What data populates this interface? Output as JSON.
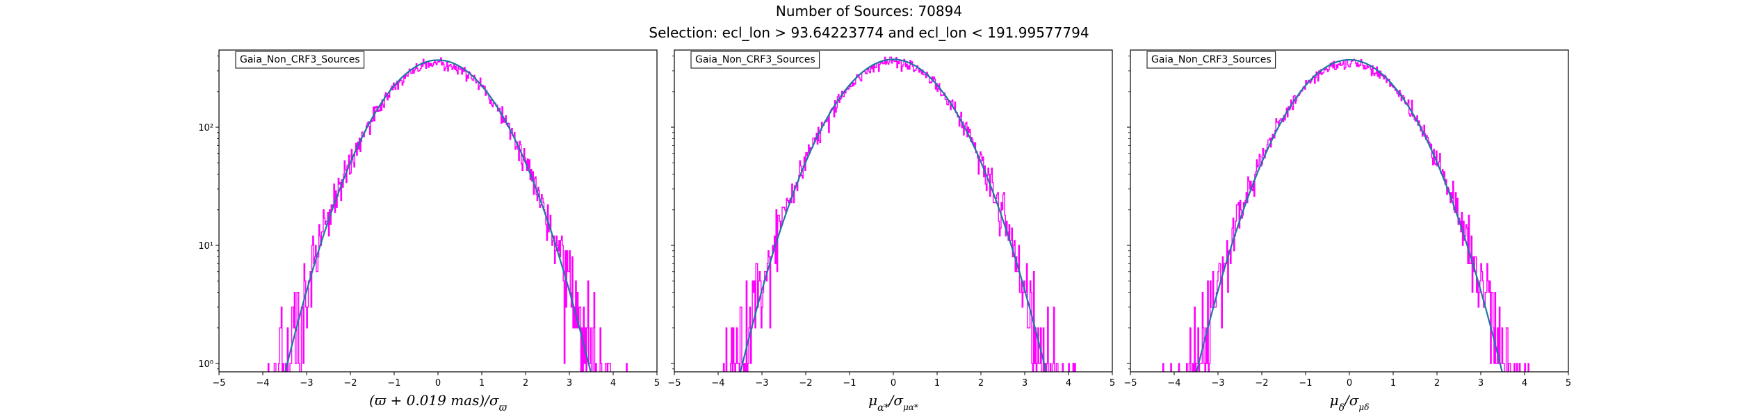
{
  "figure": {
    "title_line1": "Number of Sources: 70894",
    "title_line2": "Selection: ecl_lon > 93.64223774 and ecl_lon < 191.99577794"
  },
  "colors": {
    "histogram": "#ff00ff",
    "fit_curve": "#1a7a9e",
    "axes": "#000000"
  },
  "chart_data": [
    {
      "type": "histogram-with-fit",
      "legend": "Gaia_Non_CRF3_Sources",
      "legend_position": "top-left",
      "xlabel_base": "(ϖ + 0.019 mas)/σ",
      "xlabel_sub": "ϖ",
      "xlim": [
        -5,
        5
      ],
      "xticks": [
        -5,
        -4,
        -3,
        -2,
        -1,
        0,
        1,
        2,
        3,
        4,
        5
      ],
      "yscale": "log",
      "ylim": [
        0.85,
        450
      ],
      "yticks": [
        {
          "value": 1,
          "label": "10⁰"
        },
        {
          "value": 10,
          "label": "10¹"
        },
        {
          "value": 100,
          "label": "10²"
        }
      ],
      "fit": {
        "peak": 370,
        "mean": 0,
        "sigma": 1.0
      },
      "hist": {
        "peak": 350,
        "mean": 0,
        "sigma": 1.02,
        "bin_width": 0.02,
        "range": [
          -5,
          5
        ],
        "seed": 17
      }
    },
    {
      "type": "histogram-with-fit",
      "legend": "Gaia_Non_CRF3_Sources",
      "legend_position": "top-left",
      "xlabel_base": "μ",
      "xlabel_sub": "α*",
      "xlabel_mid": "/σ",
      "xlabel_sub2": "μα*",
      "xlim": [
        -5,
        5
      ],
      "xticks": [
        -5,
        -4,
        -3,
        -2,
        -1,
        0,
        1,
        2,
        3,
        4,
        5
      ],
      "yscale": "log",
      "ylim": [
        0.85,
        450
      ],
      "yticks": [
        {
          "value": 1,
          "label": ""
        },
        {
          "value": 10,
          "label": ""
        },
        {
          "value": 100,
          "label": ""
        }
      ],
      "fit": {
        "peak": 375,
        "mean": 0,
        "sigma": 1.0
      },
      "hist": {
        "peak": 355,
        "mean": 0,
        "sigma": 1.02,
        "bin_width": 0.02,
        "range": [
          -5,
          5
        ],
        "seed": 43
      }
    },
    {
      "type": "histogram-with-fit",
      "legend": "Gaia_Non_CRF3_Sources",
      "legend_position": "top-left",
      "xlabel_base": "μ",
      "xlabel_sub": "δ",
      "xlabel_mid": "/σ",
      "xlabel_sub2": "μδ",
      "xlim": [
        -5,
        5
      ],
      "xticks": [
        -5,
        -4,
        -3,
        -2,
        -1,
        0,
        1,
        2,
        3,
        4,
        5
      ],
      "yscale": "log",
      "ylim": [
        0.85,
        450
      ],
      "yticks": [
        {
          "value": 1,
          "label": ""
        },
        {
          "value": 10,
          "label": ""
        },
        {
          "value": 100,
          "label": ""
        }
      ],
      "fit": {
        "peak": 372,
        "mean": 0,
        "sigma": 1.0
      },
      "hist": {
        "peak": 352,
        "mean": 0,
        "sigma": 1.03,
        "bin_width": 0.02,
        "range": [
          -5,
          5
        ],
        "seed": 91
      }
    }
  ]
}
